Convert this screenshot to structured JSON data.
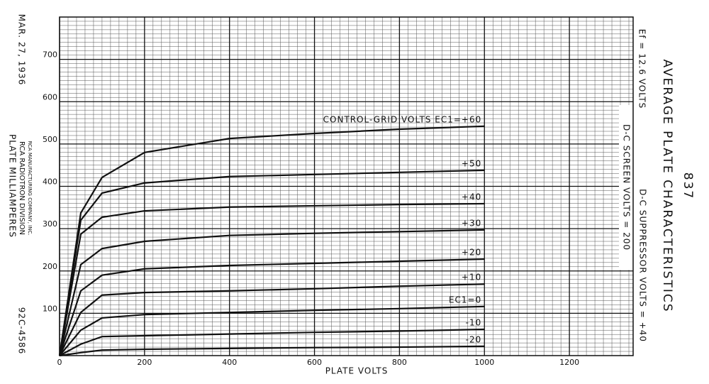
{
  "chart_data": {
    "type": "line",
    "title": "AVERAGE PLATE CHARACTERISTICS",
    "subtitle": "837",
    "xlabel": "PLATE VOLTS",
    "ylabel": "PLATE MILLIAMPERES",
    "notes": [
      "Ef = 12.6 VOLTS",
      "D-C SCREEN VOLTS = 200",
      "D-C SUPPRESSOR VOLTS = +40",
      "MAR. 27, 1936",
      "RCA RADIOTRON DIVISION",
      "RCA MANUFACTURING COMPANY, INC.",
      "92C-4586"
    ],
    "x": [
      0,
      50,
      100,
      200,
      400,
      600,
      800,
      1000
    ],
    "series": [
      {
        "name": "CONTROL-GRID VOLTS EC1=+60",
        "color": "#111111",
        "values": [
          0,
          337,
          421,
          480,
          513,
          525,
          535,
          542
        ]
      },
      {
        "name": "+50",
        "color": "#111111",
        "values": [
          0,
          320,
          384,
          408,
          423,
          428,
          433,
          438
        ]
      },
      {
        "name": "+40",
        "color": "#111111",
        "values": [
          0,
          287,
          327,
          342,
          351,
          354,
          357,
          359
        ]
      },
      {
        "name": "+30",
        "color": "#111111",
        "values": [
          0,
          215,
          253,
          270,
          284,
          289,
          293,
          297
        ]
      },
      {
        "name": "+20",
        "color": "#111111",
        "values": [
          0,
          153,
          190,
          205,
          213,
          218,
          223,
          228
        ]
      },
      {
        "name": "+10",
        "color": "#111111",
        "values": [
          0,
          102,
          143,
          149,
          153,
          158,
          164,
          169
        ]
      },
      {
        "name": "EC1=0",
        "color": "#111111",
        "values": [
          0,
          60,
          89,
          97,
          102,
          107,
          111,
          116
        ]
      },
      {
        "name": "-10",
        "color": "#111111",
        "values": [
          0,
          27,
          45,
          47,
          51,
          55,
          58,
          62
        ]
      },
      {
        "name": "-20",
        "color": "#111111",
        "values": [
          0,
          7,
          13,
          15,
          17,
          19,
          20,
          22
        ]
      }
    ],
    "xlim": [
      0,
      1350
    ],
    "ylim": [
      0,
      800
    ],
    "xticks": [
      0,
      200,
      400,
      600,
      800,
      1000,
      1200
    ],
    "yticks": [
      100,
      200,
      300,
      400,
      500,
      600,
      700
    ],
    "grid": true
  }
}
